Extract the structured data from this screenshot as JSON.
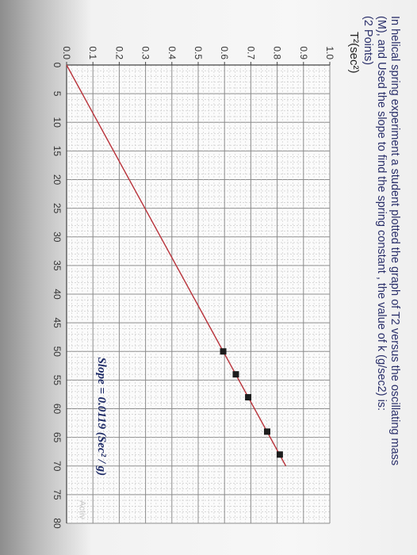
{
  "question": {
    "line1": "In helical spring experiment a student  plotted the graph of T2 versus the oscillating mass",
    "line2": "(M), and Used the slope to find the spring constant , the value of k (g/sec2) is:",
    "line3": "(2 Points)"
  },
  "watermark": "Activ",
  "chart_data": {
    "type": "line",
    "title": "",
    "xlabel": "",
    "ylabel": "T²(sec²)",
    "xlim": [
      0,
      80
    ],
    "ylim": [
      0,
      1.0
    ],
    "x_ticks": [
      "0",
      "5",
      "10",
      "15",
      "20",
      "25",
      "30",
      "35",
      "40",
      "45",
      "50",
      "55",
      "60",
      "65",
      "70",
      "75",
      "80"
    ],
    "y_ticks": [
      "0.0",
      "0.1",
      "0.2",
      "0.3",
      "0.4",
      "0.5",
      "0.6",
      "0.7",
      "0.8",
      "0.9",
      "1.0"
    ],
    "grid": true,
    "fit_line": {
      "x": [
        0,
        70
      ],
      "y": [
        0,
        0.833
      ]
    },
    "series": [
      {
        "x": [
          50,
          54,
          58,
          64,
          68
        ],
        "y": [
          0.595,
          0.643,
          0.69,
          0.762,
          0.81
        ]
      }
    ],
    "annotation": "Slope = 0.0119 (Sec² / g)"
  }
}
